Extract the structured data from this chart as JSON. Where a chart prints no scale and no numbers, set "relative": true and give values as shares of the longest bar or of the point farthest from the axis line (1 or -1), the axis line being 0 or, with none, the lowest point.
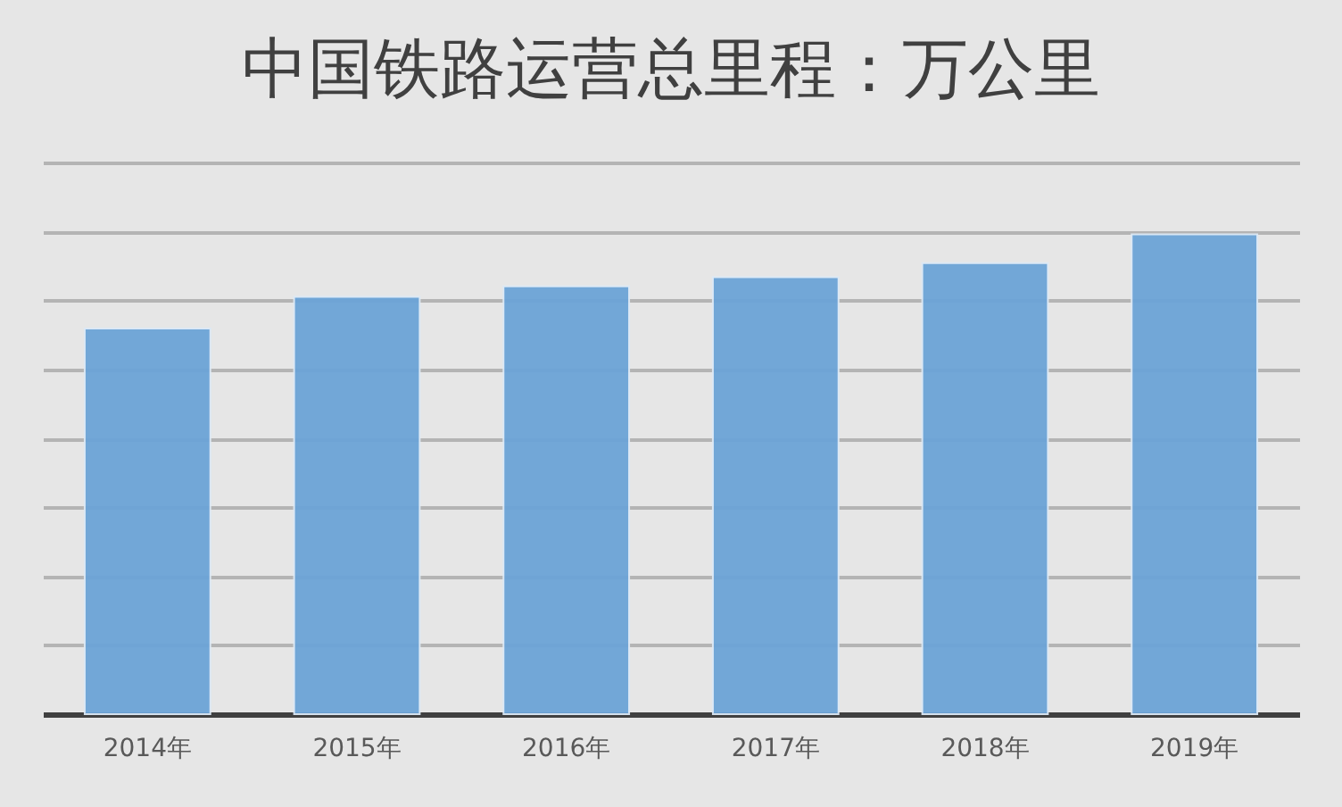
{
  "chart_data": {
    "type": "bar",
    "title": "中国铁路运营总里程：万公里",
    "categories": [
      "2014年",
      "2015年",
      "2016年",
      "2017年",
      "2018年",
      "2019年"
    ],
    "values": [
      0.804,
      0.87,
      0.892,
      0.911,
      0.94,
      1
    ],
    "color": "#6ca4d7",
    "relative": true,
    "grid": "y"
  }
}
